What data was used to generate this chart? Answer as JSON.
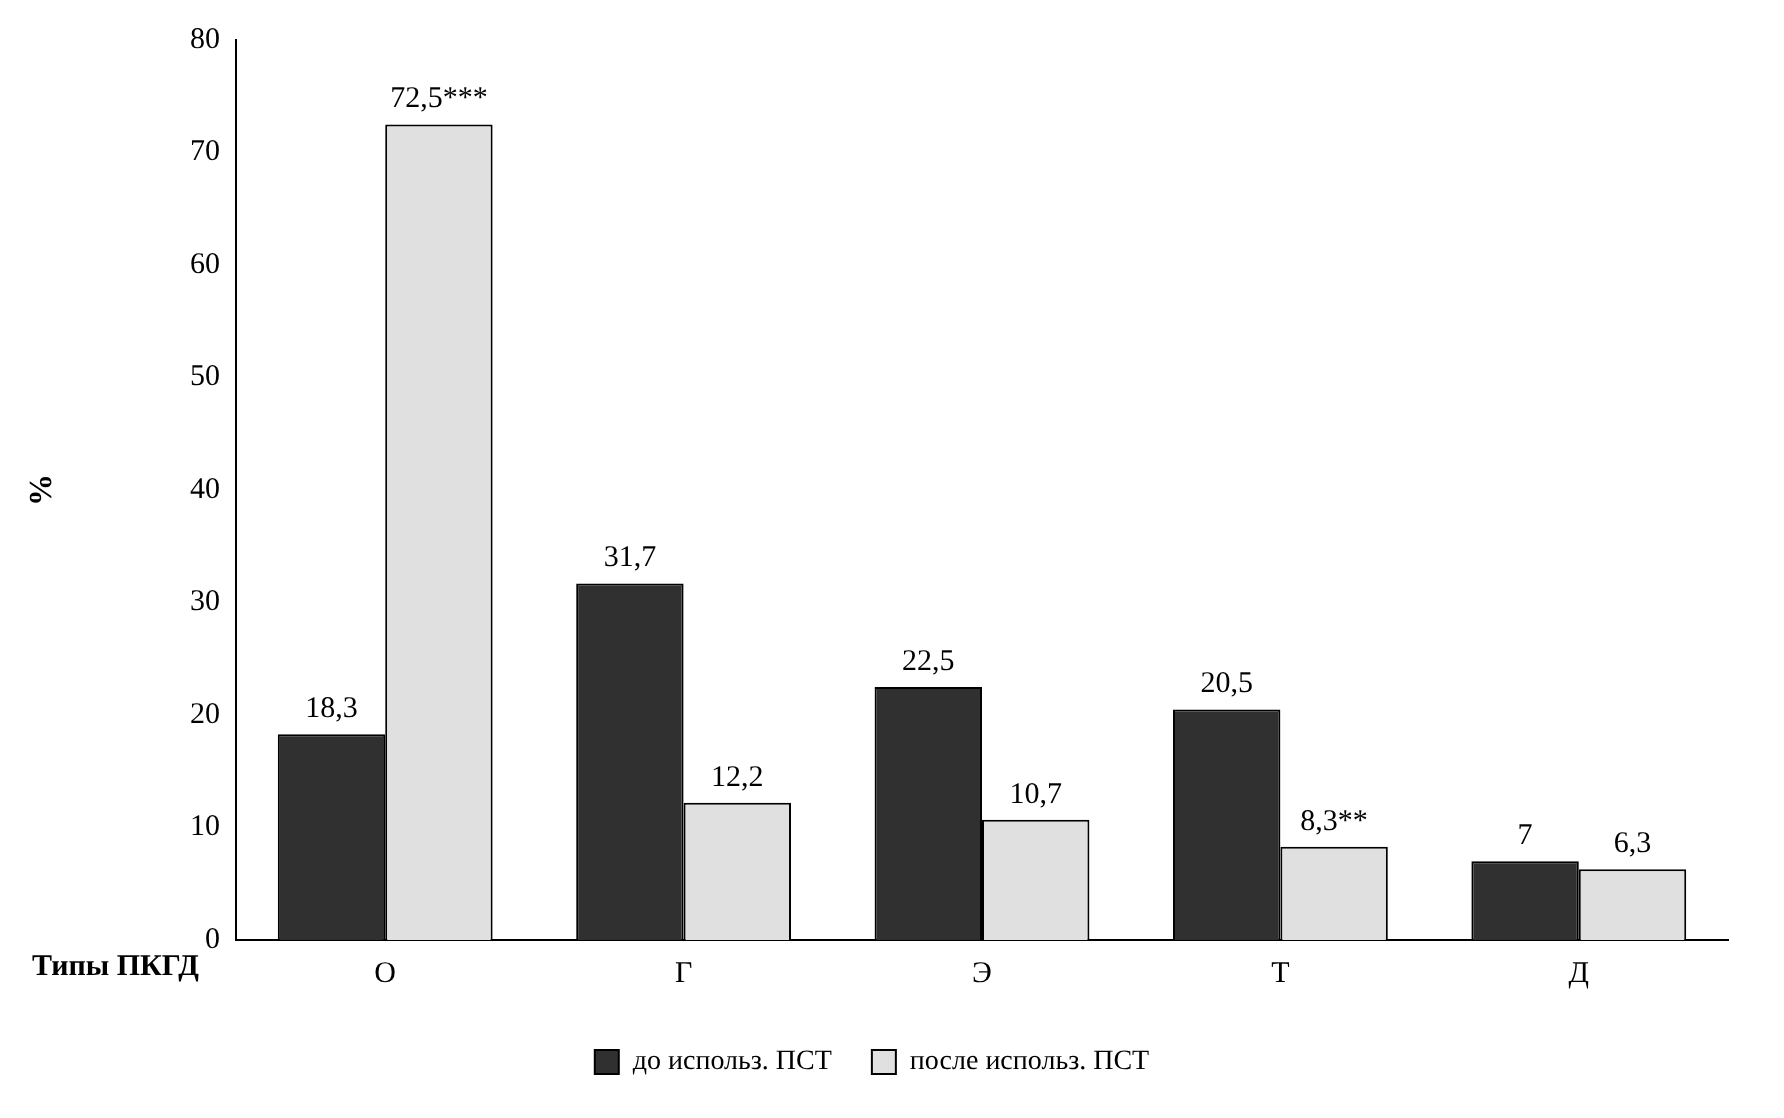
{
  "chart_data": {
    "type": "bar",
    "xlabel": "Типы ПКГД",
    "ylabel": "%",
    "categories": [
      "О",
      "Г",
      "Э",
      "Т",
      "Д"
    ],
    "series": [
      {
        "name": "до использ. ПСТ",
        "color": "#303030",
        "values": [
          18.3,
          31.7,
          22.5,
          20.5,
          7
        ],
        "value_labels": [
          "18,3",
          "31,7",
          "22,5",
          "20,5",
          "7"
        ]
      },
      {
        "name": "после использ. ПСТ",
        "color": "#e0e0e0",
        "values": [
          72.5,
          12.2,
          10.7,
          8.3,
          6.3
        ],
        "value_labels": [
          "72,5***",
          "12,2",
          "10,7",
          "8,3**",
          "6,3"
        ]
      }
    ],
    "ylim": [
      0,
      80
    ],
    "yticks": [
      0,
      10,
      20,
      30,
      40,
      50,
      60,
      70,
      80
    ],
    "grid": false,
    "legend": "bottom"
  }
}
